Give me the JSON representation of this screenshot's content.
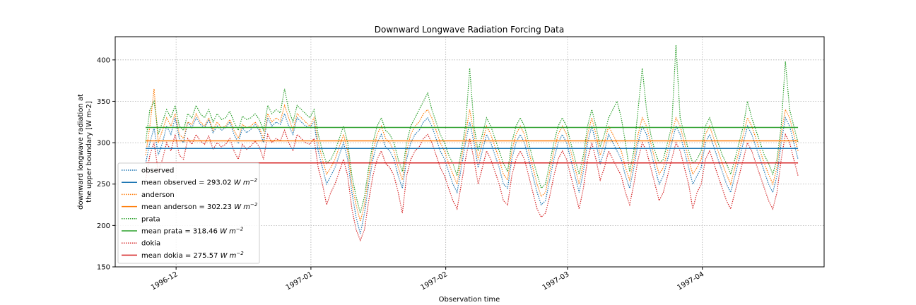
{
  "chart_data": {
    "type": "line",
    "title": "Downward Longwave Radiation Forcing Data",
    "xlabel": "Observation time",
    "ylabel_lines": [
      "downward longwave radiation at",
      "the upper boundary [W m-2]"
    ],
    "x_ticks": [
      "1996-12",
      "1997-01",
      "1997-02",
      "1997-03",
      "1997-04"
    ],
    "y_ticks": [
      150,
      200,
      250,
      300,
      350,
      400
    ],
    "ylim": [
      150,
      428
    ],
    "xlim": [
      "1996-11-17",
      "1997-04-29"
    ],
    "grid": true,
    "legend_position": "lower-left",
    "x_start": "1996-11-24",
    "x_end": "1997-04-23",
    "series": [
      {
        "name": "observed",
        "style": "dotted",
        "color": "#1f77b4",
        "mean": 293.02,
        "values": [
          275,
          300,
          318,
          285,
          300,
          320,
          310,
          330,
          305,
          300,
          325,
          318,
          330,
          322,
          318,
          328,
          312,
          320,
          315,
          318,
          325,
          310,
          300,
          318,
          312,
          316,
          322,
          315,
          300,
          330,
          320,
          325,
          322,
          335,
          320,
          310,
          330,
          325,
          320,
          318,
          325,
          290,
          270,
          250,
          260,
          270,
          285,
          300,
          280,
          240,
          210,
          190,
          215,
          250,
          280,
          300,
          310,
          295,
          290,
          280,
          260,
          245,
          280,
          300,
          310,
          315,
          325,
          330,
          320,
          305,
          290,
          280,
          265,
          250,
          240,
          270,
          300,
          325,
          300,
          270,
          290,
          310,
          300,
          285,
          270,
          250,
          245,
          280,
          300,
          310,
          300,
          280,
          260,
          240,
          225,
          230,
          255,
          280,
          300,
          310,
          300,
          280,
          260,
          240,
          265,
          300,
          320,
          300,
          275,
          290,
          310,
          300,
          290,
          280,
          260,
          245,
          270,
          300,
          320,
          310,
          290,
          270,
          250,
          260,
          280,
          300,
          320,
          310,
          290,
          270,
          250,
          260,
          270,
          300,
          310,
          295,
          280,
          265,
          250,
          240,
          260,
          280,
          300,
          320,
          310,
          295,
          280,
          265,
          250,
          240,
          260,
          300,
          330,
          320,
          300,
          280
        ]
      },
      {
        "name": "anderson",
        "style": "dotted",
        "color": "#ff7f0e",
        "mean": 302.23,
        "values": [
          285,
          320,
          365,
          300,
          315,
          330,
          320,
          335,
          310,
          305,
          325,
          322,
          335,
          325,
          320,
          330,
          315,
          325,
          318,
          320,
          328,
          315,
          305,
          322,
          318,
          320,
          325,
          318,
          305,
          335,
          325,
          330,
          326,
          345,
          330,
          315,
          335,
          330,
          325,
          320,
          330,
          300,
          280,
          262,
          270,
          280,
          295,
          310,
          290,
          250,
          225,
          205,
          225,
          260,
          290,
          310,
          320,
          305,
          300,
          290,
          270,
          255,
          290,
          310,
          320,
          325,
          335,
          340,
          330,
          315,
          300,
          290,
          275,
          262,
          250,
          280,
          310,
          340,
          310,
          280,
          300,
          320,
          310,
          295,
          280,
          262,
          255,
          290,
          310,
          320,
          310,
          290,
          270,
          250,
          235,
          240,
          265,
          290,
          310,
          320,
          310,
          290,
          270,
          250,
          275,
          310,
          330,
          310,
          285,
          300,
          320,
          310,
          300,
          290,
          270,
          255,
          280,
          310,
          330,
          320,
          300,
          280,
          262,
          270,
          290,
          310,
          330,
          320,
          300,
          280,
          262,
          270,
          280,
          310,
          320,
          305,
          290,
          275,
          262,
          250,
          270,
          290,
          310,
          330,
          320,
          305,
          290,
          275,
          262,
          250,
          270,
          310,
          340,
          330,
          310,
          290
        ]
      },
      {
        "name": "prata",
        "style": "dotted",
        "color": "#2ca02c",
        "mean": 318.46,
        "values": [
          300,
          340,
          350,
          310,
          325,
          340,
          330,
          345,
          320,
          315,
          335,
          330,
          345,
          335,
          330,
          340,
          325,
          335,
          328,
          330,
          338,
          325,
          315,
          332,
          328,
          330,
          335,
          328,
          315,
          345,
          335,
          340,
          336,
          365,
          340,
          325,
          345,
          340,
          335,
          330,
          340,
          310,
          290,
          275,
          280,
          290,
          305,
          320,
          300,
          260,
          235,
          215,
          235,
          270,
          300,
          320,
          330,
          315,
          310,
          300,
          280,
          265,
          300,
          320,
          330,
          340,
          350,
          360,
          340,
          325,
          310,
          300,
          285,
          275,
          260,
          290,
          320,
          390,
          320,
          290,
          310,
          330,
          320,
          305,
          290,
          275,
          265,
          300,
          320,
          330,
          320,
          300,
          280,
          262,
          245,
          250,
          275,
          300,
          320,
          330,
          320,
          300,
          280,
          262,
          285,
          320,
          340,
          320,
          295,
          310,
          330,
          340,
          350,
          330,
          300,
          265,
          290,
          340,
          390,
          340,
          310,
          290,
          275,
          280,
          300,
          320,
          418,
          330,
          310,
          290,
          275,
          280,
          290,
          320,
          330,
          315,
          300,
          285,
          275,
          262,
          280,
          300,
          320,
          350,
          330,
          315,
          300,
          285,
          275,
          262,
          280,
          320,
          398,
          340,
          320,
          300
        ]
      },
      {
        "name": "dokia",
        "style": "dotted",
        "color": "#d62728",
        "mean": 275.57,
        "values": [
          255,
          285,
          300,
          265,
          280,
          300,
          290,
          310,
          285,
          280,
          305,
          298,
          310,
          302,
          298,
          308,
          292,
          300,
          295,
          298,
          305,
          290,
          280,
          298,
          292,
          296,
          302,
          295,
          280,
          310,
          300,
          305,
          302,
          315,
          300,
          290,
          310,
          305,
          300,
          298,
          305,
          270,
          250,
          225,
          240,
          250,
          265,
          280,
          260,
          220,
          195,
          182,
          195,
          230,
          260,
          280,
          290,
          275,
          270,
          260,
          240,
          215,
          260,
          280,
          290,
          295,
          305,
          310,
          300,
          285,
          270,
          260,
          245,
          230,
          220,
          250,
          280,
          305,
          280,
          250,
          270,
          290,
          280,
          265,
          250,
          230,
          225,
          260,
          280,
          290,
          280,
          260,
          240,
          220,
          210,
          215,
          235,
          260,
          280,
          290,
          280,
          260,
          240,
          220,
          245,
          280,
          300,
          280,
          255,
          270,
          290,
          280,
          270,
          260,
          240,
          225,
          250,
          280,
          300,
          290,
          270,
          250,
          230,
          240,
          260,
          280,
          300,
          290,
          270,
          250,
          220,
          240,
          250,
          280,
          290,
          275,
          260,
          245,
          230,
          220,
          240,
          260,
          280,
          300,
          290,
          275,
          260,
          245,
          230,
          220,
          240,
          280,
          310,
          300,
          280,
          260
        ]
      }
    ],
    "legend": [
      {
        "label": "observed",
        "style": "dotted",
        "color": "#1f77b4"
      },
      {
        "label": "mean observed = 293.02",
        "unit": "W m",
        "exp": "−2",
        "style": "solid",
        "color": "#1f77b4"
      },
      {
        "label": "anderson",
        "style": "dotted",
        "color": "#ff7f0e"
      },
      {
        "label": "mean anderson = 302.23",
        "unit": "W m",
        "exp": "−2",
        "style": "solid",
        "color": "#ff7f0e"
      },
      {
        "label": "prata",
        "style": "dotted",
        "color": "#2ca02c"
      },
      {
        "label": "mean prata = 318.46",
        "unit": "W m",
        "exp": "−2",
        "style": "solid",
        "color": "#2ca02c"
      },
      {
        "label": "dokia",
        "style": "dotted",
        "color": "#d62728"
      },
      {
        "label": "mean dokia = 275.57",
        "unit": "W m",
        "exp": "−2",
        "style": "solid",
        "color": "#d62728"
      }
    ]
  }
}
